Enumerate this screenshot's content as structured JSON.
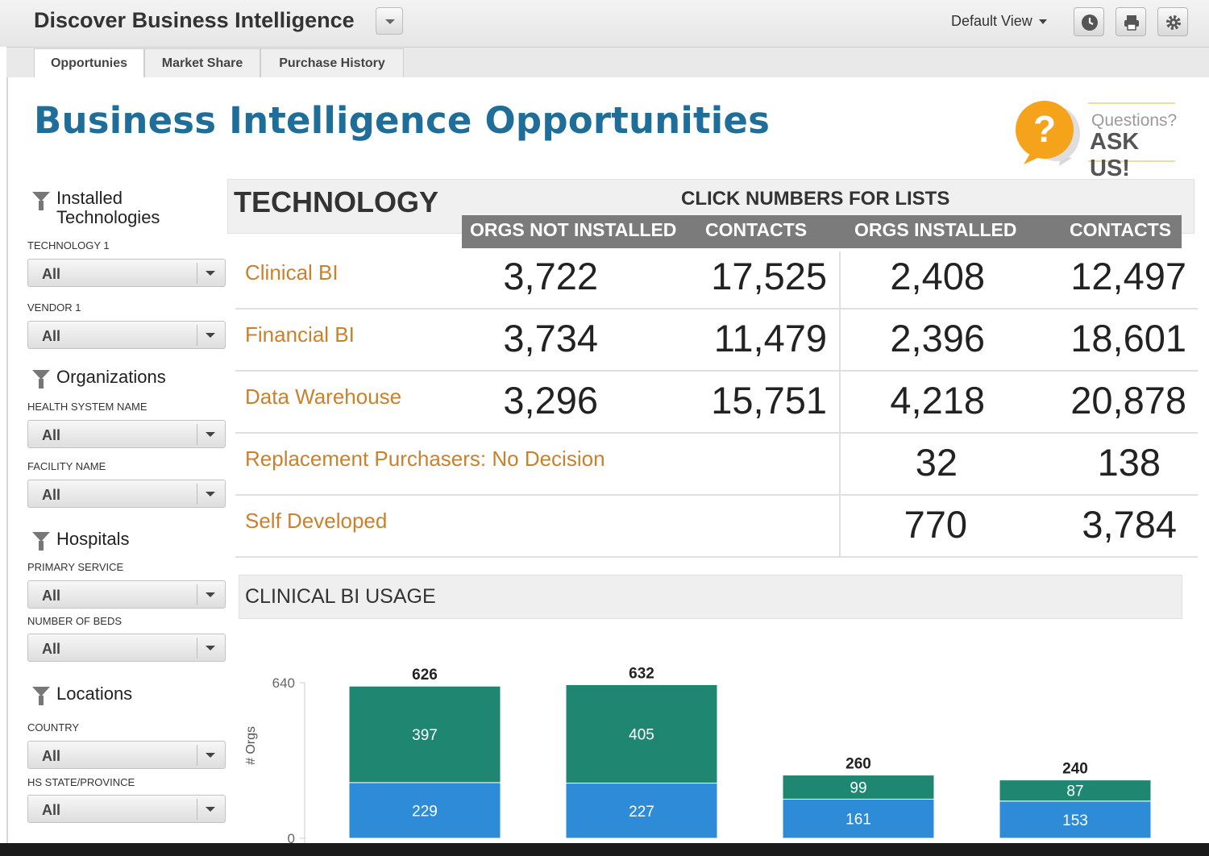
{
  "header": {
    "app_title": "Discover Business Intelligence",
    "view_label": "Default View"
  },
  "tabs": [
    {
      "label": "Opportunies",
      "active": true
    },
    {
      "label": "Market Share",
      "active": false
    },
    {
      "label": "Purchase History",
      "active": false
    }
  ],
  "page_title": "Business Intelligence Opportunities",
  "ask_us": {
    "question": "Questions?",
    "action": "ASK US!"
  },
  "filters": {
    "installed": {
      "title_line1": "Installed",
      "title_line2": "Technologies",
      "fields": [
        {
          "label": "TECHNOLOGY 1",
          "value": "All"
        },
        {
          "label": "VENDOR 1",
          "value": "All"
        }
      ]
    },
    "organizations": {
      "title": "Organizations",
      "fields": [
        {
          "label": "HEALTH SYSTEM NAME",
          "value": "All"
        },
        {
          "label": "FACILITY NAME",
          "value": "All"
        }
      ]
    },
    "hospitals": {
      "title": "Hospitals",
      "fields": [
        {
          "label": "PRIMARY SERVICE",
          "value": "All"
        },
        {
          "label": "NUMBER OF BEDS",
          "value": "All"
        }
      ]
    },
    "locations": {
      "title": "Locations",
      "fields": [
        {
          "label": "COUNTRY",
          "value": "All"
        },
        {
          "label": "HS STATE/PROVINCE",
          "value": "All"
        }
      ]
    }
  },
  "technology": {
    "title": "TECHNOLOGY",
    "click_label": "CLICK NUMBERS FOR LISTS",
    "columns": [
      "ORGS NOT INSTALLED",
      "CONTACTS",
      "ORGS INSTALLED",
      "CONTACTS"
    ],
    "rows": [
      {
        "label": "Clinical BI",
        "orgs_not": "3,722",
        "contacts_not": "17,525",
        "orgs_inst": "2,408",
        "contacts_inst": "12,497"
      },
      {
        "label": "Financial BI",
        "orgs_not": "3,734",
        "contacts_not": "11,479",
        "orgs_inst": "2,396",
        "contacts_inst": "18,601"
      },
      {
        "label": "Data Warehouse",
        "orgs_not": "3,296",
        "contacts_not": "15,751",
        "orgs_inst": "4,218",
        "contacts_inst": "20,878"
      },
      {
        "label": "Replacement Purchasers: No Decision",
        "orgs_not": "",
        "contacts_not": "",
        "orgs_inst": "32",
        "contacts_inst": "138"
      },
      {
        "label": "Self Developed",
        "orgs_not": "",
        "contacts_not": "",
        "orgs_inst": "770",
        "contacts_inst": "3,784"
      }
    ]
  },
  "usage": {
    "title": "CLINICAL BI USAGE"
  },
  "chart_data": {
    "type": "bar",
    "stacked": true,
    "ylabel": "# Orgs",
    "ylim": [
      0,
      640
    ],
    "y_ticks": [
      0,
      640
    ],
    "totals": [
      626,
      632,
      260,
      240
    ],
    "series": [
      {
        "values": [
          229,
          227,
          161,
          153
        ],
        "color": "#2e8bd8"
      },
      {
        "values": [
          397,
          405,
          99,
          87
        ],
        "color": "#1f8672"
      }
    ]
  },
  "colors": {
    "accent": "#1e6e99",
    "orange": "#c9812c",
    "header_gray": "#7b7b7b",
    "ask_orange": "#f5a31a"
  }
}
